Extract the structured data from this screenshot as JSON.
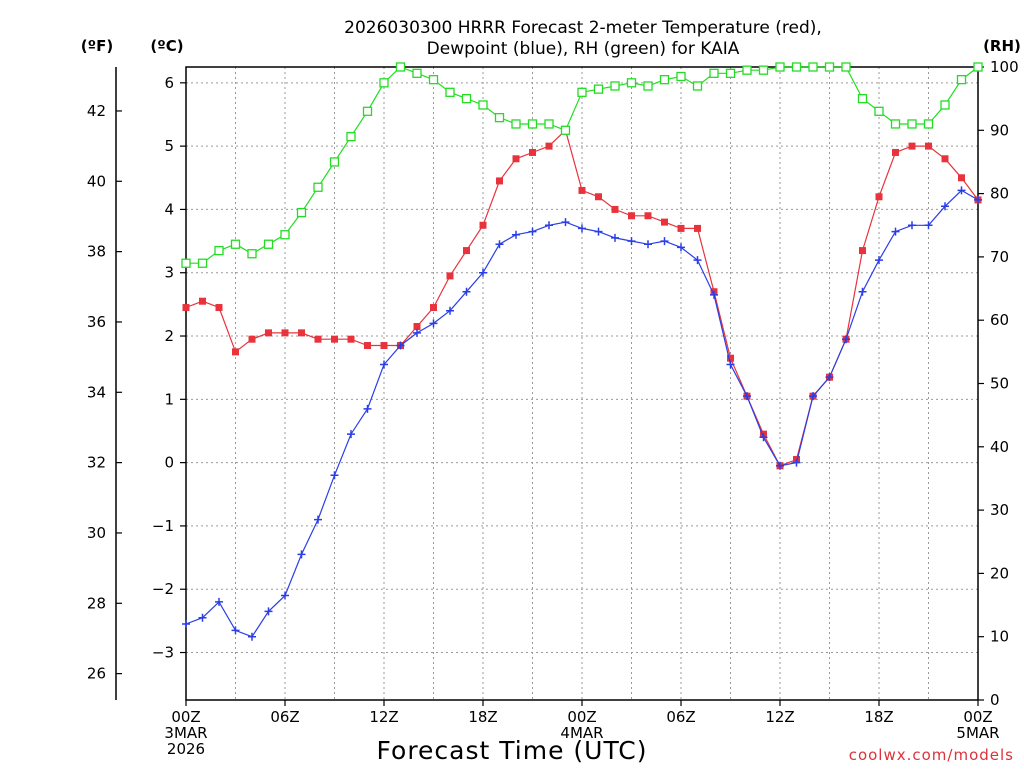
{
  "chart_data": {
    "type": "line",
    "title_lines": [
      "2026030300 HRRR Forecast 2-meter Temperature (red),",
      "Dewpoint (blue), RH (green) for KAIA"
    ],
    "xlabel": "Forecast Time (UTC)",
    "credit": "coolwx.com/models",
    "units": {
      "f": "(ºF)",
      "c": "(ºC)",
      "rh": "(RH)"
    },
    "x_range": [
      0,
      48
    ],
    "celsius_range": [
      -3.75,
      6.25
    ],
    "rh_range": [
      0,
      100
    ],
    "x_ticks": [
      {
        "x": 0,
        "lines": [
          "00Z",
          "3MAR",
          "2026"
        ]
      },
      {
        "x": 6,
        "lines": [
          "06Z"
        ]
      },
      {
        "x": 12,
        "lines": [
          "12Z"
        ]
      },
      {
        "x": 18,
        "lines": [
          "18Z"
        ]
      },
      {
        "x": 24,
        "lines": [
          "00Z",
          "4MAR"
        ]
      },
      {
        "x": 30,
        "lines": [
          "06Z"
        ]
      },
      {
        "x": 36,
        "lines": [
          "12Z"
        ]
      },
      {
        "x": 42,
        "lines": [
          "18Z"
        ]
      },
      {
        "x": 48,
        "lines": [
          "00Z",
          "5MAR"
        ]
      }
    ],
    "celsius_ticks": [
      -3,
      -2,
      -1,
      0,
      1,
      2,
      3,
      4,
      5,
      6
    ],
    "fahrenheit_ticks": [
      26,
      28,
      30,
      32,
      34,
      36,
      38,
      40,
      42
    ],
    "rh_ticks": [
      0,
      10,
      20,
      30,
      40,
      50,
      60,
      70,
      80,
      90,
      100
    ],
    "series": [
      {
        "name": "Temperature",
        "color": "#e8333d",
        "axis": "celsius",
        "marker": "filled-square",
        "values": [
          2.45,
          2.55,
          2.45,
          1.75,
          1.95,
          2.05,
          2.05,
          2.05,
          1.95,
          1.95,
          1.95,
          1.85,
          1.85,
          1.85,
          2.15,
          2.45,
          2.95,
          3.35,
          3.75,
          4.45,
          4.8,
          4.9,
          5.0,
          5.25,
          4.3,
          4.2,
          4.0,
          3.9,
          3.9,
          3.8,
          3.7,
          3.7,
          2.7,
          1.65,
          1.05,
          0.45,
          -0.05,
          0.05,
          1.05,
          1.35,
          1.95,
          3.35,
          4.2,
          4.9,
          5.0,
          5.0,
          4.8,
          4.5,
          4.15
        ]
      },
      {
        "name": "Dewpoint",
        "color": "#2a3ee6",
        "axis": "celsius",
        "marker": "plus",
        "values": [
          -2.55,
          -2.45,
          -2.2,
          -2.65,
          -2.75,
          -2.35,
          -2.1,
          -1.45,
          -0.9,
          -0.2,
          0.45,
          0.85,
          1.55,
          1.85,
          2.05,
          2.2,
          2.4,
          2.7,
          3.0,
          3.45,
          3.6,
          3.65,
          3.75,
          3.8,
          3.7,
          3.65,
          3.55,
          3.5,
          3.45,
          3.5,
          3.4,
          3.2,
          2.65,
          1.55,
          1.05,
          0.4,
          -0.05,
          0.0,
          1.05,
          1.35,
          1.95,
          2.7,
          3.2,
          3.65,
          3.75,
          3.75,
          4.05,
          4.3,
          4.15
        ]
      },
      {
        "name": "RH",
        "color": "#22dd22",
        "axis": "rh",
        "marker": "open-square",
        "values": [
          69,
          69,
          71,
          72,
          70.5,
          72,
          73.5,
          77,
          81,
          85,
          89,
          93,
          97.5,
          100,
          99,
          98,
          96,
          95,
          94,
          92,
          91,
          91,
          91,
          90,
          96,
          96.5,
          97,
          97.5,
          97,
          98,
          98.5,
          97,
          99,
          99,
          99.5,
          99.5,
          100,
          100,
          100,
          100,
          100,
          95,
          93,
          91,
          91,
          91,
          94,
          98,
          100
        ]
      }
    ]
  }
}
